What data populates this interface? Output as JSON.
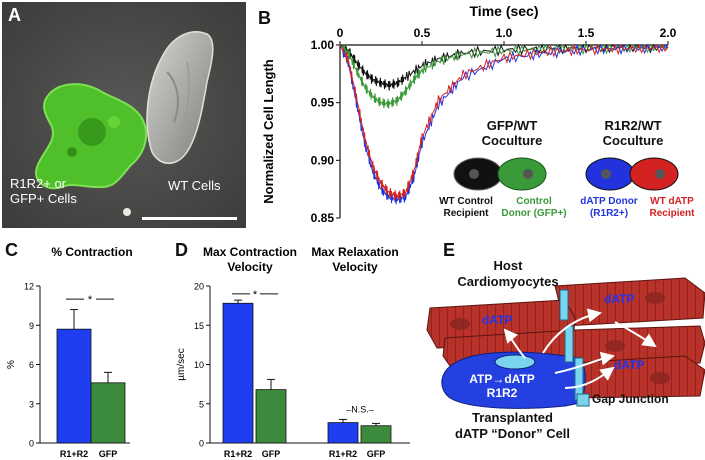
{
  "panel_a": {
    "label": "A",
    "cell_label_left": [
      "R1R2+ or",
      "GFP+ Cells"
    ],
    "cell_label_right": "WT Cells",
    "colors": {
      "background": "#4a4a48",
      "gfp_cell": "#4fbf2a",
      "wt_cell": "#b9b9b5",
      "scale_bar": "#ffffff"
    }
  },
  "panel_b": {
    "label": "B",
    "legend": {
      "gfp_title": [
        "GFP/WT",
        "Coculture"
      ],
      "r1r2_title": [
        "R1R2/WT",
        "Coculture"
      ],
      "wt_control": [
        "WT Control",
        "Recipient"
      ],
      "control_donor": [
        "Control",
        "Donor (GFP+)"
      ],
      "datp_donor": [
        "dATP Donor",
        "(R1R2+)"
      ],
      "wt_datp": [
        "WT dATP",
        "Recipient"
      ]
    },
    "colors": {
      "black": "#111111",
      "green": "#3a9a3a",
      "blue": "#2233dd",
      "red": "#d42222"
    }
  },
  "panel_c": {
    "label": "C"
  },
  "panel_d": {
    "label": "D"
  },
  "panel_e": {
    "label": "E",
    "host_label": [
      "Host",
      "Cardiomyocytes"
    ],
    "donor_label": [
      "Transplanted",
      "dATP “Donor” Cell"
    ],
    "datp_labels": [
      "dATP",
      "dATP",
      "dATP"
    ],
    "reaction": [
      "ATP→dATP",
      "R1R2"
    ],
    "gap_junction_label": "Gap Junction",
    "colors": {
      "myocyte": "#b8322a",
      "donor": "#2440e0",
      "junction": "#7ad4ee"
    }
  },
  "chart_data": [
    {
      "type": "line",
      "title": "Time (sec)",
      "xlabel": "Time (sec)",
      "ylabel": "Normalized Cell Length",
      "xlim": [
        0,
        2.0
      ],
      "ylim": [
        0.85,
        1.0
      ],
      "x_ticks": [
        "0",
        "0.5",
        "1.0",
        "1.5",
        "2.0"
      ],
      "y_ticks": [
        "1.00",
        "0.95",
        "0.90",
        "0.85"
      ],
      "series": [
        {
          "name": "WT Control Recipient",
          "color": "#111111",
          "x": [
            0,
            0.05,
            0.1,
            0.15,
            0.2,
            0.25,
            0.3,
            0.35,
            0.4,
            0.5,
            0.6,
            0.75,
            1.0,
            1.25,
            1.5,
            1.75,
            2.0
          ],
          "y": [
            1.0,
            0.995,
            0.985,
            0.976,
            0.97,
            0.967,
            0.965,
            0.967,
            0.972,
            0.982,
            0.988,
            0.993,
            0.996,
            0.997,
            0.998,
            0.998,
            0.998
          ]
        },
        {
          "name": "Control Donor (GFP+)",
          "color": "#3a9a3a",
          "x": [
            0,
            0.05,
            0.1,
            0.15,
            0.2,
            0.25,
            0.3,
            0.35,
            0.4,
            0.45,
            0.5,
            0.6,
            0.75,
            1.0,
            1.25,
            1.5,
            1.75,
            2.0
          ],
          "y": [
            1.0,
            0.993,
            0.978,
            0.964,
            0.955,
            0.95,
            0.949,
            0.952,
            0.96,
            0.97,
            0.978,
            0.986,
            0.992,
            0.995,
            0.997,
            0.997,
            0.998,
            0.998
          ]
        },
        {
          "name": "dATP Donor (R1R2+)",
          "color": "#2233dd",
          "x": [
            0,
            0.05,
            0.1,
            0.15,
            0.2,
            0.25,
            0.3,
            0.35,
            0.4,
            0.45,
            0.5,
            0.6,
            0.75,
            1.0,
            1.25,
            1.5,
            1.75,
            2.0
          ],
          "y": [
            1.0,
            0.985,
            0.95,
            0.915,
            0.89,
            0.875,
            0.868,
            0.866,
            0.868,
            0.885,
            0.915,
            0.948,
            0.972,
            0.988,
            0.993,
            0.996,
            0.997,
            0.998
          ]
        },
        {
          "name": "WT dATP Recipient",
          "color": "#d42222",
          "x": [
            0,
            0.05,
            0.1,
            0.15,
            0.2,
            0.25,
            0.3,
            0.35,
            0.4,
            0.45,
            0.5,
            0.6,
            0.75,
            1.0,
            1.25,
            1.5,
            1.75,
            2.0
          ],
          "y": [
            1.0,
            0.987,
            0.955,
            0.92,
            0.895,
            0.88,
            0.872,
            0.869,
            0.872,
            0.89,
            0.92,
            0.952,
            0.974,
            0.989,
            0.994,
            0.996,
            0.997,
            0.998
          ]
        }
      ]
    },
    {
      "type": "bar",
      "title": "% Contraction",
      "ylabel": "%",
      "ylim": [
        0,
        12
      ],
      "y_ticks": [
        "0",
        "3",
        "6",
        "9",
        "12"
      ],
      "categories": [
        "R1+R2",
        "GFP"
      ],
      "values": [
        8.7,
        4.6
      ],
      "errors": [
        1.5,
        0.8
      ],
      "colors": [
        "#1f3ef0",
        "#3c8a3c"
      ],
      "annotation": "*"
    },
    {
      "type": "bar",
      "title": "Max Contraction Velocity / Max Relaxation Velocity",
      "group_titles": [
        [
          "Max Contraction",
          "Velocity"
        ],
        [
          "Max Relaxation",
          "Velocity"
        ]
      ],
      "ylabel": "µm/sec",
      "ylim": [
        0,
        20
      ],
      "y_ticks": [
        "0",
        "5",
        "10",
        "15",
        "20"
      ],
      "categories": [
        "R1+R2",
        "GFP",
        "R1+R2",
        "GFP"
      ],
      "values": [
        17.8,
        6.8,
        2.6,
        2.2
      ],
      "errors": [
        0.4,
        1.3,
        0.4,
        0.3
      ],
      "colors": [
        "#1f3ef0",
        "#3c8a3c",
        "#1f3ef0",
        "#3c8a3c"
      ],
      "annotations": [
        "*",
        "N.S."
      ]
    }
  ]
}
